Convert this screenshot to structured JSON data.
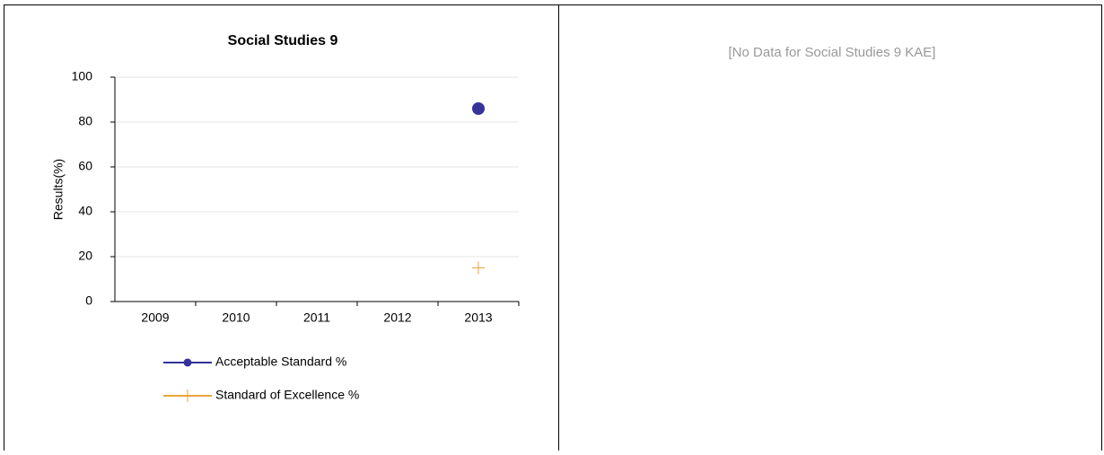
{
  "chart_data": {
    "type": "line",
    "title": "Social Studies 9",
    "y_label": "Results(%)",
    "categories": [
      "2009",
      "2010",
      "2011",
      "2012",
      "2013"
    ],
    "series": [
      {
        "name": "Acceptable Standard %",
        "color": "#333399",
        "marker": "circle",
        "values": [
          null,
          null,
          null,
          null,
          86
        ]
      },
      {
        "name": "Standard of Excellence %",
        "color": "#e8a43a",
        "marker": "plus",
        "values": [
          null,
          null,
          null,
          null,
          15
        ]
      }
    ],
    "ylim": [
      0,
      100
    ],
    "yticks": [
      0,
      20,
      40,
      60,
      80,
      100
    ],
    "grid": true,
    "legend": "bottom"
  },
  "message": "[No Data for Social Studies 9 KAE]"
}
